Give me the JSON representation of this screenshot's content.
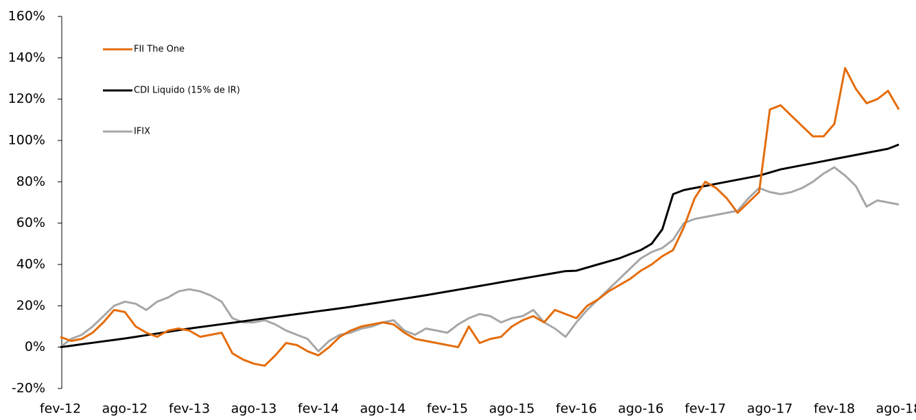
{
  "chart_data": {
    "type": "line",
    "categories": [
      "fev-12",
      null,
      null,
      null,
      null,
      null,
      "ago-12",
      null,
      null,
      null,
      null,
      null,
      "fev-13",
      null,
      null,
      null,
      null,
      null,
      "ago-13",
      null,
      null,
      null,
      null,
      null,
      "fev-14",
      null,
      null,
      null,
      null,
      null,
      "ago-14",
      null,
      null,
      null,
      null,
      null,
      "fev-15",
      null,
      null,
      null,
      null,
      null,
      "ago-15",
      null,
      null,
      null,
      null,
      null,
      "fev-16",
      null,
      null,
      null,
      null,
      null,
      "ago-16",
      null,
      null,
      null,
      null,
      null,
      "fev-17",
      null,
      null,
      null,
      null,
      null,
      "ago-17",
      null,
      null,
      null,
      null,
      null,
      "fev-18",
      null,
      null,
      null,
      null,
      null,
      "ago-18"
    ],
    "series": [
      {
        "name": "FII The One",
        "color": "#e46c0a",
        "values": [
          5,
          3,
          4,
          7,
          12,
          18,
          17,
          10,
          7,
          5,
          8,
          9,
          8,
          5,
          6,
          7,
          -3,
          -6,
          -8,
          -9,
          -4,
          2,
          1,
          -2,
          -4,
          0,
          5,
          8,
          10,
          11,
          12,
          11,
          7,
          4,
          3,
          2,
          1,
          0,
          10,
          2,
          4,
          5,
          10,
          13,
          15,
          12,
          18,
          16,
          14,
          20,
          23,
          27,
          30,
          33,
          37,
          40,
          44,
          47,
          58,
          72,
          80,
          77,
          72,
          65,
          70,
          75,
          115,
          117,
          112,
          107,
          102,
          102,
          108,
          135,
          125,
          118,
          120,
          124,
          115
        ]
      },
      {
        "name": "CDI Liquido (15% de IR)",
        "color": "#000000",
        "values": [
          0,
          0.7,
          1.4,
          2.1,
          2.8,
          3.5,
          4.2,
          5,
          5.8,
          6.6,
          7.4,
          8.2,
          9,
          9.7,
          10.4,
          11.1,
          11.8,
          12.5,
          13.2,
          13.9,
          14.6,
          15.3,
          16,
          16.7,
          17.4,
          18.1,
          18.8,
          19.5,
          20.3,
          21.1,
          21.9,
          22.7,
          23.5,
          24.3,
          25.1,
          26,
          26.9,
          27.8,
          28.7,
          29.6,
          30.5,
          31.4,
          32.3,
          33.2,
          34.1,
          35,
          35.9,
          36.8,
          37,
          38.5,
          40,
          41.5,
          43,
          45,
          47,
          50,
          57,
          74,
          76,
          77,
          78,
          79,
          80,
          81,
          82,
          83,
          84.5,
          86,
          87,
          88,
          89,
          90,
          91,
          92,
          93,
          94,
          95,
          96,
          98
        ]
      },
      {
        "name": "IFIX",
        "color": "#a6a6a6",
        "values": [
          0,
          4,
          6,
          10,
          15,
          20,
          22,
          21,
          18,
          22,
          24,
          27,
          28,
          27,
          25,
          22,
          14,
          12,
          12,
          13,
          11,
          8,
          6,
          4,
          -2,
          3,
          6,
          7,
          9,
          10,
          12,
          13,
          8,
          6,
          9,
          8,
          7,
          11,
          14,
          16,
          15,
          12,
          14,
          15,
          18,
          12,
          9,
          5,
          12,
          18,
          23,
          28,
          33,
          38,
          43,
          46,
          48,
          52,
          60,
          62,
          63,
          64,
          65,
          66,
          72,
          77,
          75,
          74,
          75,
          77,
          80,
          84,
          87,
          83,
          78,
          68,
          71,
          70,
          69
        ]
      }
    ],
    "ylim": [
      -20,
      160
    ],
    "yticks": [
      {
        "value": -20,
        "label": "-20%"
      },
      {
        "value": 0,
        "label": "0%"
      },
      {
        "value": 20,
        "label": "20%"
      },
      {
        "value": 40,
        "label": "40%"
      },
      {
        "value": 60,
        "label": "60%"
      },
      {
        "value": 80,
        "label": "80%"
      },
      {
        "value": 100,
        "label": "100%"
      },
      {
        "value": 120,
        "label": "120%"
      },
      {
        "value": 140,
        "label": "140%"
      },
      {
        "value": 160,
        "label": "160%"
      }
    ],
    "grid": false,
    "legend": "upper left"
  }
}
